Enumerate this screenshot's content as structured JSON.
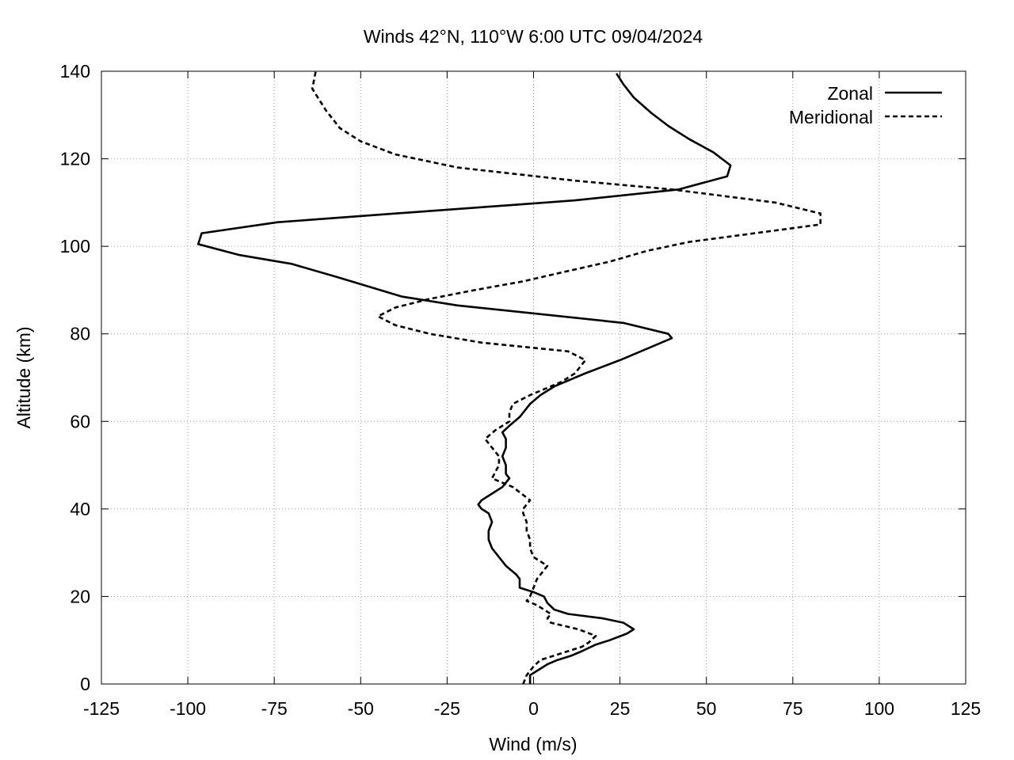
{
  "chart_data": {
    "type": "line",
    "title": "Winds 42°N, 110°W 6:00 UTC 09/04/2024",
    "xlabel": "Wind (m/s)",
    "ylabel": "Altitude (km)",
    "xlim": [
      -125,
      125
    ],
    "ylim": [
      0,
      140
    ],
    "xticks": [
      -125,
      -100,
      -75,
      -50,
      -25,
      0,
      25,
      50,
      75,
      100,
      125
    ],
    "yticks": [
      0,
      20,
      40,
      60,
      80,
      100,
      120,
      140
    ],
    "grid": true,
    "legend_position": "top-right",
    "series": [
      {
        "name": "Zonal",
        "style": "solid",
        "points": [
          [
            -1,
            0
          ],
          [
            -1,
            2
          ],
          [
            2,
            3.5
          ],
          [
            4,
            4.5
          ],
          [
            7,
            5.5
          ],
          [
            11,
            6.5
          ],
          [
            14,
            7.5
          ],
          [
            18,
            9
          ],
          [
            22,
            10
          ],
          [
            27,
            11.5
          ],
          [
            29,
            12.5
          ],
          [
            26,
            14
          ],
          [
            20,
            15
          ],
          [
            10,
            16
          ],
          [
            6,
            17
          ],
          [
            4,
            18.5
          ],
          [
            3,
            20
          ],
          [
            0,
            21
          ],
          [
            -4,
            22
          ],
          [
            -4,
            24
          ],
          [
            -5,
            25
          ],
          [
            -8,
            27
          ],
          [
            -10,
            29
          ],
          [
            -12,
            31
          ],
          [
            -13,
            33
          ],
          [
            -13,
            35
          ],
          [
            -12,
            37
          ],
          [
            -13,
            39
          ],
          [
            -15,
            40
          ],
          [
            -16,
            41
          ],
          [
            -15,
            42
          ],
          [
            -12,
            43.5
          ],
          [
            -9,
            45
          ],
          [
            -7,
            47
          ],
          [
            -8,
            48
          ],
          [
            -8,
            50
          ],
          [
            -9,
            52
          ],
          [
            -8,
            54
          ],
          [
            -8,
            56
          ],
          [
            -9,
            57.5
          ],
          [
            -7,
            59
          ],
          [
            -4,
            61
          ],
          [
            -2,
            63
          ],
          [
            -1,
            64
          ],
          [
            2,
            66
          ],
          [
            6,
            68
          ],
          [
            15,
            71
          ],
          [
            25,
            74
          ],
          [
            34,
            77
          ],
          [
            40,
            79
          ],
          [
            39,
            80
          ],
          [
            26,
            82.5
          ],
          [
            -22,
            86.5
          ],
          [
            -38,
            88.5
          ],
          [
            -57,
            93
          ],
          [
            -70,
            96
          ],
          [
            -85,
            98
          ],
          [
            -97,
            100.5
          ],
          [
            -96,
            103
          ],
          [
            -74,
            105.5
          ],
          [
            -40,
            107.5
          ],
          [
            -5,
            109.5
          ],
          [
            12,
            110.5
          ],
          [
            42,
            113
          ],
          [
            56,
            116
          ],
          [
            57,
            118.5
          ],
          [
            52,
            121.5
          ],
          [
            45,
            124.5
          ],
          [
            39,
            127.5
          ],
          [
            34,
            130.5
          ],
          [
            29,
            134
          ],
          [
            26,
            137
          ],
          [
            24,
            139.5
          ]
        ]
      },
      {
        "name": "Meridional",
        "style": "dashed",
        "points": [
          [
            -3,
            0
          ],
          [
            -2,
            2
          ],
          [
            0,
            4
          ],
          [
            2,
            5.5
          ],
          [
            6,
            6.5
          ],
          [
            10,
            7.5
          ],
          [
            14,
            8.5
          ],
          [
            16,
            9.5
          ],
          [
            18,
            11
          ],
          [
            13,
            12.5
          ],
          [
            5,
            14
          ],
          [
            4,
            15
          ],
          [
            5,
            16
          ],
          [
            3,
            17
          ],
          [
            1,
            18
          ],
          [
            -2,
            19
          ],
          [
            -1,
            20
          ],
          [
            0,
            22
          ],
          [
            1,
            24
          ],
          [
            4,
            27
          ],
          [
            0,
            29
          ],
          [
            -1,
            31
          ],
          [
            -1,
            33
          ],
          [
            -2,
            35
          ],
          [
            -2,
            37
          ],
          [
            -3,
            39
          ],
          [
            -3,
            40
          ],
          [
            -1,
            42
          ],
          [
            -6,
            45
          ],
          [
            -12,
            47
          ],
          [
            -10,
            50
          ],
          [
            -10,
            52
          ],
          [
            -12,
            54
          ],
          [
            -14,
            56
          ],
          [
            -11,
            58
          ],
          [
            -7,
            60
          ],
          [
            -7,
            62
          ],
          [
            -6,
            64
          ],
          [
            -1,
            66
          ],
          [
            8,
            69
          ],
          [
            12,
            71
          ],
          [
            15,
            74
          ],
          [
            10,
            76
          ],
          [
            -15,
            78
          ],
          [
            -30,
            80
          ],
          [
            -40,
            82
          ],
          [
            -45,
            84
          ],
          [
            -40,
            86
          ],
          [
            -30,
            88
          ],
          [
            -17,
            90
          ],
          [
            -3,
            92
          ],
          [
            8,
            94
          ],
          [
            22,
            96.5
          ],
          [
            33,
            99
          ],
          [
            45,
            101
          ],
          [
            64,
            103
          ],
          [
            83,
            105
          ],
          [
            83,
            107.5
          ],
          [
            70,
            110
          ],
          [
            40,
            113
          ],
          [
            12,
            115
          ],
          [
            -22,
            118
          ],
          [
            -40,
            121
          ],
          [
            -50,
            124
          ],
          [
            -56,
            127
          ],
          [
            -60,
            131
          ],
          [
            -64,
            136
          ],
          [
            -63,
            140
          ]
        ]
      }
    ]
  }
}
